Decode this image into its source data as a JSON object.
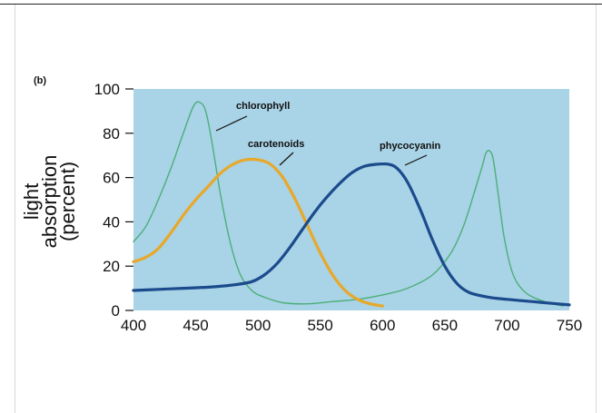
{
  "chart_data": {
    "type": "line",
    "panel_label": "(b)",
    "ylabel_lines": [
      "light",
      "absorption",
      "(percent)"
    ],
    "xlim": [
      400,
      750
    ],
    "ylim": [
      0,
      100
    ],
    "x_ticks": [
      400,
      450,
      500,
      550,
      600,
      650,
      700,
      750
    ],
    "y_ticks": [
      0,
      20,
      40,
      60,
      80,
      100
    ],
    "grid": false,
    "plot_background": "#a9d3e6",
    "series": [
      {
        "name": "chlorophyll",
        "color": "#4caf7a",
        "stroke_width": 1.4,
        "points": [
          [
            400,
            31
          ],
          [
            410,
            38
          ],
          [
            420,
            50
          ],
          [
            430,
            64
          ],
          [
            440,
            80
          ],
          [
            448,
            92
          ],
          [
            453,
            94
          ],
          [
            458,
            90
          ],
          [
            463,
            76
          ],
          [
            470,
            52
          ],
          [
            478,
            30
          ],
          [
            486,
            16
          ],
          [
            495,
            9
          ],
          [
            505,
            6
          ],
          [
            520,
            3.5
          ],
          [
            540,
            3
          ],
          [
            560,
            4
          ],
          [
            580,
            5
          ],
          [
            600,
            7
          ],
          [
            620,
            10
          ],
          [
            640,
            16
          ],
          [
            655,
            26
          ],
          [
            665,
            38
          ],
          [
            673,
            52
          ],
          [
            680,
            65
          ],
          [
            683,
            71
          ],
          [
            686,
            72
          ],
          [
            689,
            68
          ],
          [
            693,
            52
          ],
          [
            698,
            32
          ],
          [
            705,
            16
          ],
          [
            715,
            8
          ],
          [
            730,
            4
          ],
          [
            745,
            2
          ]
        ]
      },
      {
        "name": "carotenoids",
        "color": "#e8a829",
        "stroke_width": 3.2,
        "points": [
          [
            400,
            22
          ],
          [
            410,
            24
          ],
          [
            420,
            28
          ],
          [
            430,
            35
          ],
          [
            440,
            43
          ],
          [
            450,
            50
          ],
          [
            460,
            56
          ],
          [
            470,
            62
          ],
          [
            480,
            66
          ],
          [
            490,
            68
          ],
          [
            500,
            68
          ],
          [
            510,
            66
          ],
          [
            520,
            60
          ],
          [
            530,
            50
          ],
          [
            540,
            38
          ],
          [
            550,
            26
          ],
          [
            560,
            16
          ],
          [
            570,
            9
          ],
          [
            580,
            5
          ],
          [
            590,
            3
          ],
          [
            600,
            2
          ]
        ]
      },
      {
        "name": "phycocyanin",
        "color": "#1b4b8c",
        "stroke_width": 3.2,
        "points": [
          [
            400,
            9
          ],
          [
            420,
            9.5
          ],
          [
            440,
            10
          ],
          [
            460,
            10.5
          ],
          [
            480,
            11.5
          ],
          [
            495,
            13
          ],
          [
            505,
            16
          ],
          [
            515,
            21
          ],
          [
            525,
            28
          ],
          [
            535,
            36
          ],
          [
            545,
            44
          ],
          [
            555,
            51
          ],
          [
            565,
            57
          ],
          [
            575,
            62
          ],
          [
            585,
            65
          ],
          [
            595,
            66
          ],
          [
            605,
            66
          ],
          [
            612,
            64
          ],
          [
            620,
            58
          ],
          [
            630,
            46
          ],
          [
            640,
            32
          ],
          [
            650,
            20
          ],
          [
            660,
            12
          ],
          [
            670,
            8
          ],
          [
            685,
            6
          ],
          [
            700,
            5
          ],
          [
            720,
            4
          ],
          [
            740,
            3
          ],
          [
            750,
            2.5
          ]
        ]
      }
    ],
    "annotations": [
      {
        "text": "chlorophyll",
        "series": "chlorophyll"
      },
      {
        "text": "carotenoids",
        "series": "carotenoids"
      },
      {
        "text": "phycocyanin",
        "series": "phycocyanin"
      }
    ]
  }
}
